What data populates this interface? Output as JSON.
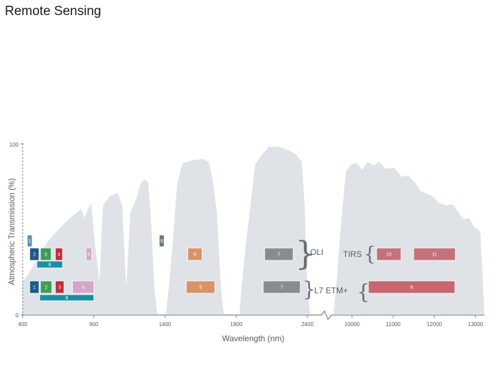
{
  "title": "Remote Sensing",
  "axes": {
    "y_label": "Atmospheric Transmission (%)",
    "y_ticks": [
      "100",
      "0"
    ],
    "x_label": "Wavelength (nm)",
    "x_ticks": [
      "400",
      "900",
      "1400",
      "1900",
      "2400",
      "10000",
      "11000",
      "12000",
      "13000"
    ]
  },
  "sensors": {
    "oli": {
      "label": "OLI",
      "bands": [
        {
          "id": "1",
          "start": 433,
          "end": 453,
          "color": "#5f8fb5"
        },
        {
          "id": "2",
          "start": 450,
          "end": 515,
          "color": "#1d5a8c"
        },
        {
          "id": "3",
          "start": 525,
          "end": 600,
          "color": "#3f9b58"
        },
        {
          "id": "4",
          "start": 630,
          "end": 680,
          "color": "#c12c3b"
        },
        {
          "id": "5",
          "start": 845,
          "end": 885,
          "color": "#d4a7c9"
        },
        {
          "id": "9",
          "start": 1360,
          "end": 1390,
          "color": "#6f7680"
        },
        {
          "id": "6",
          "start": 1560,
          "end": 1660,
          "color": "#d8936a"
        },
        {
          "id": "7",
          "start": 2100,
          "end": 2300,
          "color": "#8a8b8c"
        },
        {
          "id": "8",
          "start": 500,
          "end": 680,
          "color": "#1a8fa3"
        }
      ]
    },
    "tirs": {
      "label": "TIRS",
      "bands": [
        {
          "id": "10",
          "start": 10600,
          "end": 11190,
          "color": "#c27279"
        },
        {
          "id": "11",
          "start": 11500,
          "end": 12510,
          "color": "#c27279"
        }
      ]
    },
    "etm": {
      "label": "L7 ETM+",
      "bands": [
        {
          "id": "1",
          "start": 450,
          "end": 515,
          "color": "#1d5a8c"
        },
        {
          "id": "2",
          "start": 525,
          "end": 605,
          "color": "#3f9b58"
        },
        {
          "id": "3",
          "start": 630,
          "end": 690,
          "color": "#c12c3b"
        },
        {
          "id": "4",
          "start": 750,
          "end": 900,
          "color": "#d4a7c9"
        },
        {
          "id": "5",
          "start": 1550,
          "end": 1750,
          "color": "#d8936a"
        },
        {
          "id": "7",
          "start": 2090,
          "end": 2350,
          "color": "#8a8b8c"
        },
        {
          "id": "8",
          "start": 520,
          "end": 900,
          "color": "#1a8fa3"
        },
        {
          "id": "6",
          "start": 10400,
          "end": 12500,
          "color": "#c8666f"
        }
      ]
    }
  },
  "colors": {
    "transmission_fill": "#dfe3e7",
    "axis": "#7b8087"
  }
}
